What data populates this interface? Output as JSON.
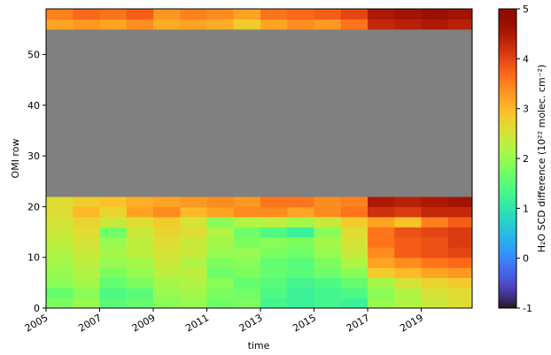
{
  "chart_data": {
    "type": "heatmap",
    "xlabel": "time",
    "ylabel": "OMI row",
    "colorbar_label": "H₂O SCD difference (10²² molec. cm⁻²)",
    "colormap": "turbo",
    "missing_color": "#808080",
    "xlim": [
      2005,
      2020.9
    ],
    "ylim": [
      0,
      59
    ],
    "xticks": [
      2005,
      2007,
      2009,
      2011,
      2013,
      2015,
      2017,
      2019
    ],
    "yticks": [
      0,
      10,
      20,
      30,
      40,
      50
    ],
    "clim": [
      -1,
      5
    ],
    "cticks": [
      -1,
      0,
      1,
      2,
      3,
      4,
      5
    ],
    "xbins": [
      2005,
      2006,
      2007,
      2008,
      2009,
      2010,
      2011,
      2012,
      2013,
      2014,
      2015,
      2016,
      2017,
      2018,
      2019,
      2020,
      2020.9
    ],
    "ybins": [
      0,
      2,
      4,
      6,
      8,
      10,
      12,
      14,
      16,
      18,
      20,
      22,
      55,
      57,
      59
    ],
    "z": [
      [
        1.8,
        2.0,
        1.5,
        1.6,
        1.9,
        2.0,
        1.7,
        1.8,
        1.3,
        1.2,
        1.3,
        1.2,
        2.0,
        2.2,
        2.4,
        2.6
      ],
      [
        1.6,
        1.9,
        1.4,
        1.5,
        2.0,
        2.1,
        1.8,
        1.7,
        1.4,
        1.2,
        1.3,
        1.4,
        1.9,
        2.2,
        2.5,
        2.6
      ],
      [
        1.9,
        2.1,
        1.6,
        1.8,
        2.1,
        2.2,
        1.9,
        1.6,
        1.5,
        1.3,
        1.4,
        1.6,
        2.1,
        2.5,
        2.7,
        2.8
      ],
      [
        2.0,
        2.2,
        1.8,
        2.0,
        2.3,
        2.3,
        1.7,
        1.8,
        1.6,
        1.5,
        1.7,
        1.9,
        2.8,
        3.0,
        3.2,
        3.3
      ],
      [
        2.1,
        2.3,
        2.0,
        2.1,
        2.4,
        2.2,
        1.8,
        1.9,
        1.6,
        1.5,
        1.8,
        2.2,
        3.2,
        3.4,
        3.6,
        3.7
      ],
      [
        2.2,
        2.4,
        2.1,
        2.3,
        2.5,
        2.4,
        2.0,
        2.0,
        1.8,
        1.7,
        2.0,
        2.4,
        3.4,
        3.8,
        3.9,
        4.0
      ],
      [
        2.3,
        2.5,
        2.0,
        2.3,
        2.6,
        2.4,
        2.1,
        1.8,
        1.9,
        1.8,
        2.1,
        2.5,
        3.6,
        3.8,
        3.9,
        4.1
      ],
      [
        2.4,
        2.6,
        1.7,
        2.4,
        2.7,
        2.6,
        2.2,
        1.7,
        1.4,
        1.2,
        1.9,
        2.6,
        3.6,
        3.9,
        4.0,
        4.1
      ],
      [
        2.5,
        2.7,
        2.4,
        2.6,
        2.8,
        2.5,
        1.9,
        2.2,
        2.3,
        2.1,
        2.4,
        2.8,
        3.2,
        2.9,
        3.5,
        3.8
      ],
      [
        2.6,
        3.0,
        2.7,
        3.2,
        3.4,
        3.0,
        3.2,
        3.4,
        3.4,
        3.2,
        3.4,
        3.6,
        4.2,
        4.1,
        4.3,
        4.3
      ],
      [
        2.6,
        2.8,
        2.9,
        3.1,
        3.2,
        3.3,
        3.4,
        3.3,
        3.6,
        3.6,
        3.4,
        3.5,
        4.5,
        4.4,
        4.5,
        4.6
      ],
      [
        null,
        null,
        null,
        null,
        null,
        null,
        null,
        null,
        null,
        null,
        null,
        null,
        null,
        null,
        null,
        null
      ],
      [
        3.2,
        3.3,
        3.2,
        3.4,
        3.1,
        3.2,
        3.1,
        2.8,
        3.2,
        3.4,
        3.3,
        3.6,
        4.3,
        4.4,
        4.5,
        4.4
      ],
      [
        3.5,
        3.7,
        3.6,
        3.8,
        3.3,
        3.5,
        3.4,
        3.2,
        3.6,
        3.7,
        3.8,
        4.0,
        4.5,
        4.6,
        4.7,
        4.6
      ]
    ]
  }
}
